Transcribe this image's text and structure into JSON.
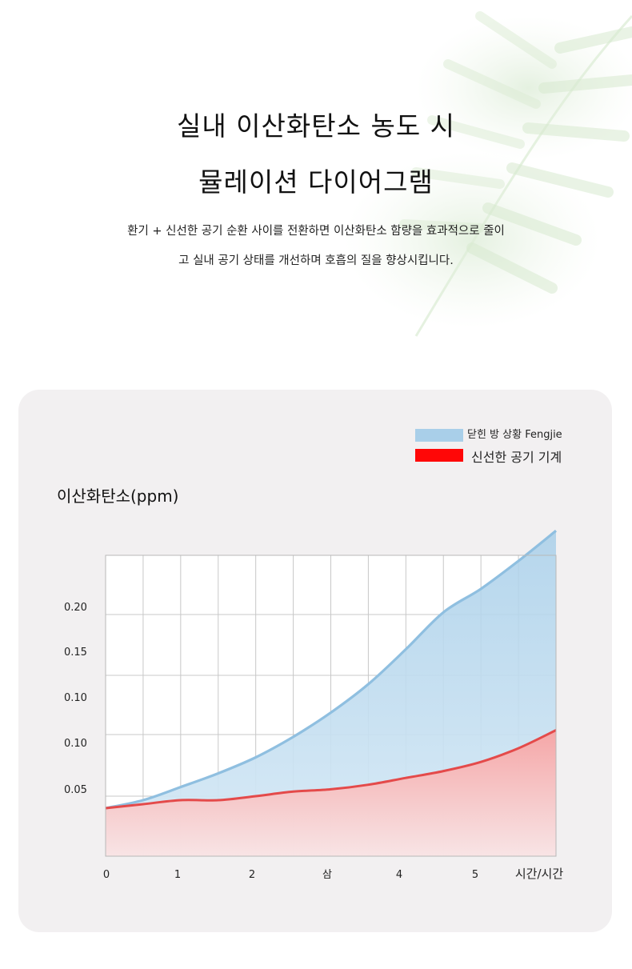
{
  "header": {
    "title_line1": "실내 이산화탄소 농도 시",
    "title_line2": "뮬레이션 다이어그램",
    "subtitle_line1": "환기 + 신선한 공기 순환 사이를 전환하면 이산화탄소 함량을 효과적으로 줄이",
    "subtitle_line2": "고 실내 공기 상태를 개선하며 호흡의 질을 향상시킵니다."
  },
  "colors": {
    "closed_room": "#8fbfe0",
    "closed_fill": "#a9cfe9",
    "fresh_air": "#e44a4a",
    "fresh_fill": "#f7a3a3",
    "card_bg": "#f2f0f1",
    "grid": "#c8c8c8"
  },
  "chart_data": {
    "type": "area",
    "ylabel": "이산화탄소(ppm)",
    "xlabel": "시간/시간",
    "x_ticks": [
      "0",
      "1",
      "2",
      "삼",
      "4",
      "5"
    ],
    "y_ticks": [
      "0.20",
      "0.15",
      "0.10",
      "0.10",
      "0.05"
    ],
    "grid": true,
    "legend_position": "top-right",
    "x": [
      0,
      0.5,
      1,
      1.5,
      2,
      2.5,
      3,
      3.5,
      4,
      4.5,
      5,
      5.5,
      6
    ],
    "series": [
      {
        "name": "닫힌 방 상황 Fengjie",
        "color": "#8fbfe0",
        "values": [
          0.052,
          0.054,
          0.059,
          0.065,
          0.072,
          0.081,
          0.092,
          0.105,
          0.121,
          0.139,
          0.16,
          0.185,
          0.212
        ]
      },
      {
        "name": "신선한 공기 기계",
        "color": "#e44a4a",
        "values": [
          0.052,
          0.053,
          0.054,
          0.054,
          0.055,
          0.057,
          0.058,
          0.06,
          0.063,
          0.066,
          0.07,
          0.076,
          0.084
        ]
      }
    ]
  }
}
